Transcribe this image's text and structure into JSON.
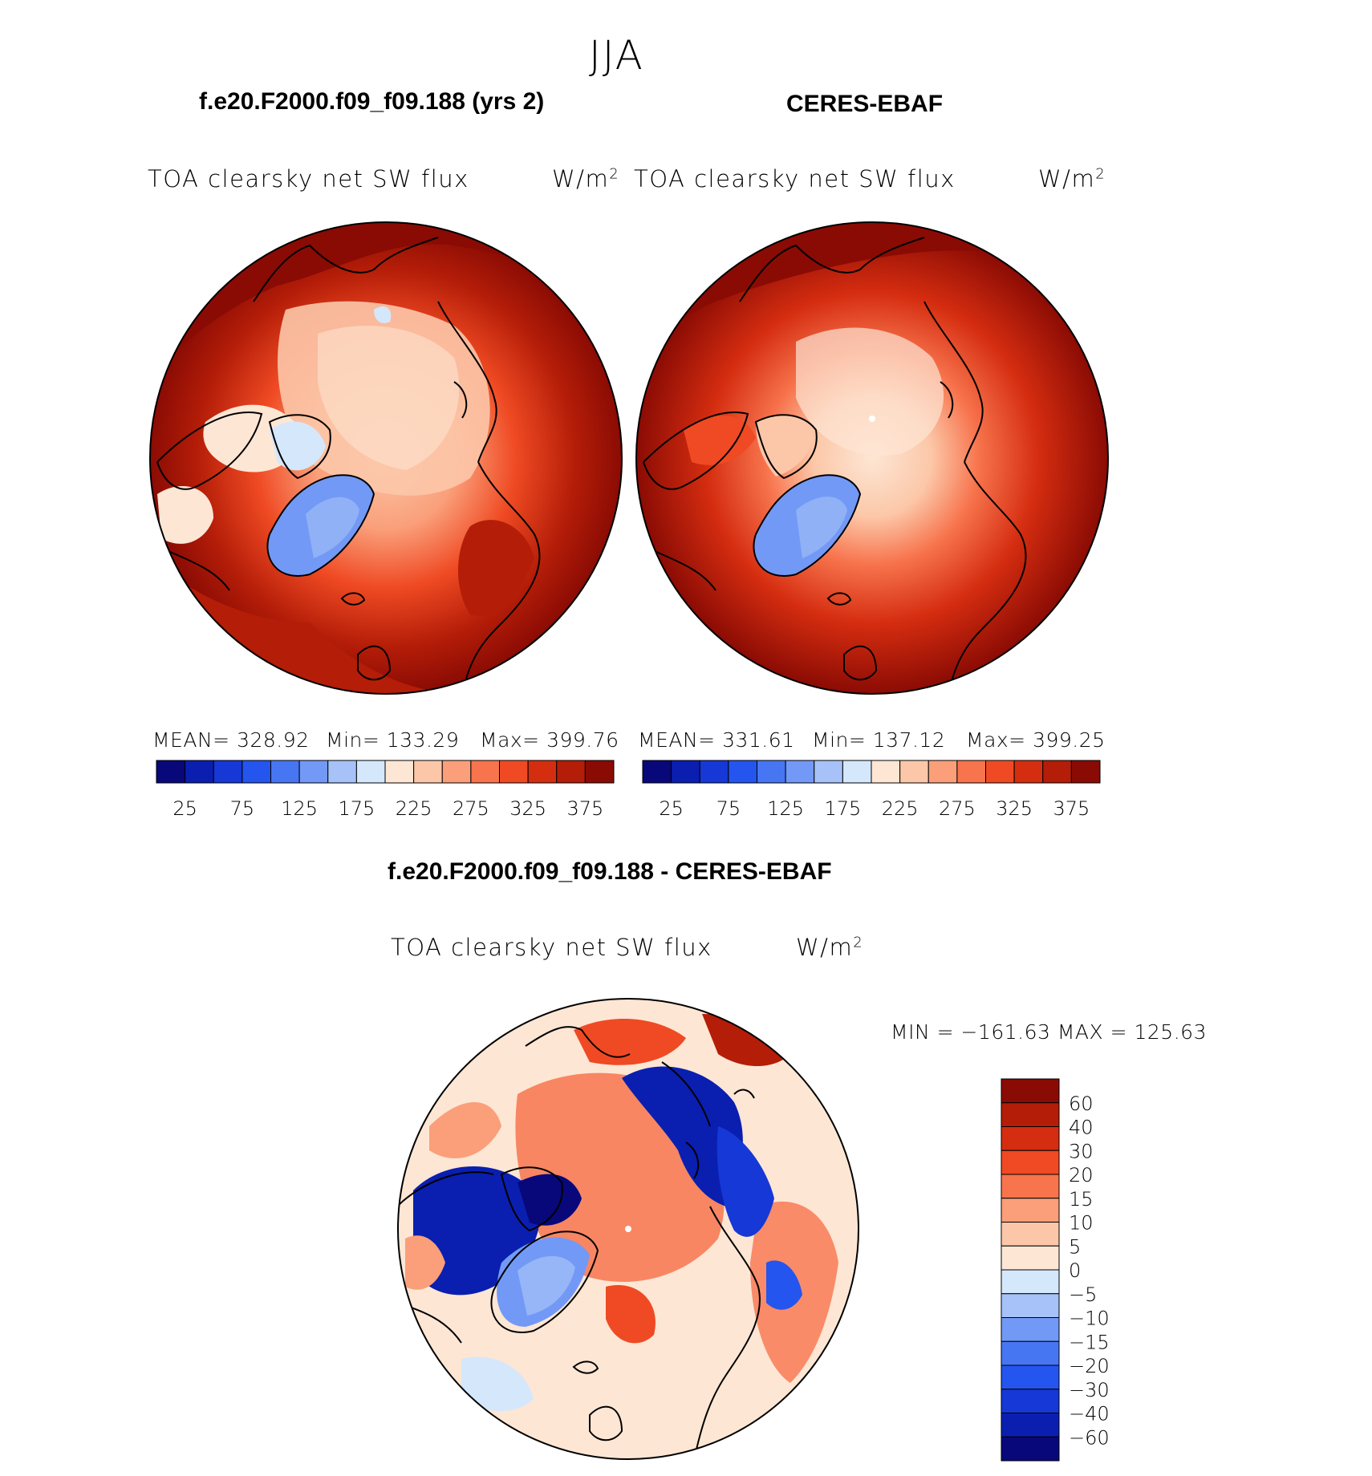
{
  "figure": {
    "title": "JJA"
  },
  "panels": [
    {
      "title": "f.e20.F2000.f09_f09.188 (yrs 2)",
      "variable": "TOA clearsky net SW flux",
      "units": "W/m",
      "units_sup": "2",
      "stats": {
        "mean": "MEAN= 328.92",
        "min": "Min= 133.29",
        "max": "Max= 399.76"
      }
    },
    {
      "title": "CERES-EBAF",
      "variable": "TOA clearsky net SW flux",
      "units": "W/m",
      "units_sup": "2",
      "stats": {
        "mean": "MEAN= 331.61",
        "min": "Min= 137.12",
        "max": "Max= 399.25"
      }
    },
    {
      "title": "f.e20.F2000.f09_f09.188 - CERES-EBAF",
      "variable": "TOA clearsky net SW flux",
      "units": "W/m",
      "units_sup": "2",
      "stats": {
        "minmax": "MIN = −161.63  MAX = 125.63"
      }
    }
  ],
  "colorbars": {
    "abs": {
      "colors": [
        "#08087a",
        "#0a1fb0",
        "#1538d6",
        "#2455ee",
        "#4776f3",
        "#7299f6",
        "#a6c2f8",
        "#d5e7fb",
        "#fde6d4",
        "#fcc7a8",
        "#fa9f7a",
        "#f7744d",
        "#ef4a23",
        "#d52d10",
        "#b41d08",
        "#8a0b04"
      ],
      "labels": [
        "25",
        "75",
        "125",
        "175",
        "225",
        "275",
        "325",
        "375"
      ]
    },
    "diff": {
      "colors": [
        "#8a0b04",
        "#b41d08",
        "#d52d10",
        "#ef4a23",
        "#f7744d",
        "#fa9f7a",
        "#fcc7a8",
        "#fde6d4",
        "#d5e7fb",
        "#a6c2f8",
        "#7299f6",
        "#4776f3",
        "#2455ee",
        "#1538d6",
        "#0a1fb0",
        "#08087a"
      ],
      "labels": [
        "60",
        "40",
        "30",
        "20",
        "15",
        "10",
        "5",
        "0",
        "−5",
        "−10",
        "−15",
        "−20",
        "−30",
        "−40",
        "−60"
      ]
    }
  }
}
